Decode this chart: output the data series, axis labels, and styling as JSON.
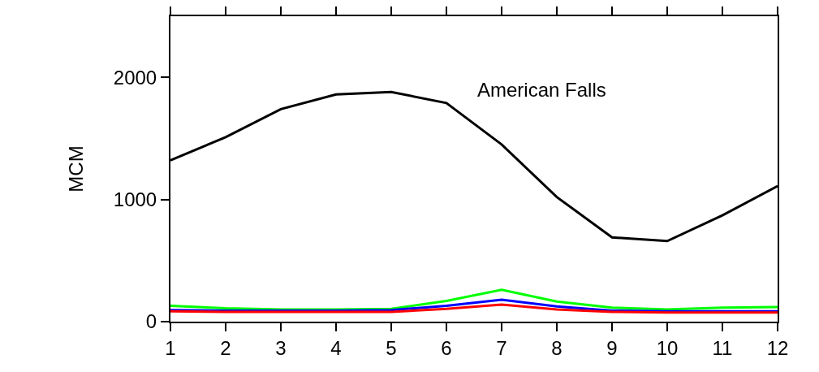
{
  "chart_data": {
    "type": "line",
    "ylabel": "MCM",
    "annotations": [
      "American Falls"
    ],
    "x": [
      1,
      2,
      3,
      4,
      5,
      6,
      7,
      8,
      9,
      10,
      11,
      12
    ],
    "series": [
      {
        "color": "#000000",
        "values": [
          1320,
          1510,
          1740,
          1860,
          1880,
          1790,
          1450,
          1020,
          690,
          660,
          870,
          1110
        ]
      },
      {
        "color": "#00ff00",
        "values": [
          130,
          110,
          100,
          100,
          105,
          170,
          260,
          165,
          115,
          100,
          115,
          120
        ]
      },
      {
        "color": "#0000ff",
        "values": [
          95,
          90,
          90,
          90,
          95,
          130,
          180,
          125,
          90,
          85,
          85,
          85
        ]
      },
      {
        "color": "#ff0000",
        "values": [
          85,
          80,
          80,
          80,
          80,
          105,
          140,
          100,
          80,
          75,
          75,
          75
        ]
      }
    ],
    "xlim": [
      1,
      12
    ],
    "xticks": [
      1,
      2,
      3,
      4,
      5,
      6,
      7,
      8,
      9,
      10,
      11,
      12
    ],
    "ylim": [
      0,
      2500
    ],
    "yticks": [
      0,
      1000,
      2000
    ],
    "grid": false,
    "marker": "none",
    "line_style": "solid"
  }
}
